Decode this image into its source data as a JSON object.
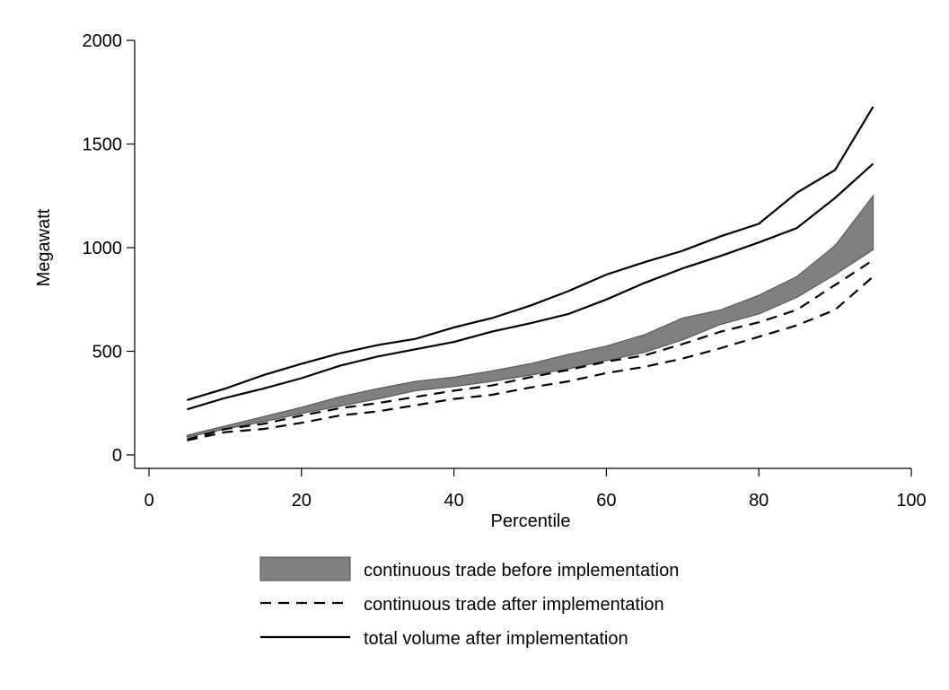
{
  "chart_data": {
    "type": "area",
    "xlabel": "Percentile",
    "ylabel": "Megawatt",
    "xlim": [
      0,
      100
    ],
    "ylim": [
      0,
      2000
    ],
    "xticks": [
      0,
      20,
      40,
      60,
      80,
      100
    ],
    "yticks": [
      0,
      500,
      1000,
      1500,
      2000
    ],
    "grid": false,
    "legend_position": "bottom",
    "x": [
      5,
      10,
      15,
      20,
      25,
      30,
      35,
      40,
      45,
      50,
      55,
      60,
      65,
      70,
      75,
      80,
      85,
      90,
      95
    ],
    "series": [
      {
        "name": "continuous trade before implementation",
        "kind": "band",
        "color": "#808080",
        "lower": [
          85,
          125,
          160,
          200,
          235,
          270,
          310,
          330,
          355,
          385,
          415,
          455,
          495,
          555,
          630,
          680,
          760,
          870,
          990
        ],
        "upper": [
          95,
          140,
          185,
          230,
          280,
          320,
          355,
          375,
          405,
          440,
          485,
          525,
          580,
          660,
          700,
          770,
          860,
          1010,
          1250
        ]
      },
      {
        "name": "continuous trade after implementation",
        "kind": "dashed-lines",
        "color": "#000000",
        "lines": [
          [
            70,
            110,
            125,
            155,
            190,
            210,
            240,
            270,
            290,
            325,
            355,
            395,
            425,
            465,
            515,
            570,
            625,
            700,
            860
          ],
          [
            75,
            125,
            150,
            190,
            225,
            250,
            280,
            310,
            335,
            375,
            410,
            450,
            480,
            535,
            595,
            640,
            700,
            820,
            940
          ]
        ]
      },
      {
        "name": "total volume after implementation",
        "kind": "solid-lines",
        "color": "#000000",
        "lines": [
          [
            220,
            275,
            320,
            370,
            430,
            475,
            510,
            545,
            595,
            635,
            680,
            750,
            830,
            900,
            960,
            1025,
            1095,
            1240,
            1405
          ],
          [
            265,
            320,
            385,
            440,
            490,
            530,
            560,
            615,
            660,
            720,
            790,
            870,
            930,
            985,
            1055,
            1115,
            1265,
            1375,
            1680
          ]
        ]
      }
    ]
  }
}
